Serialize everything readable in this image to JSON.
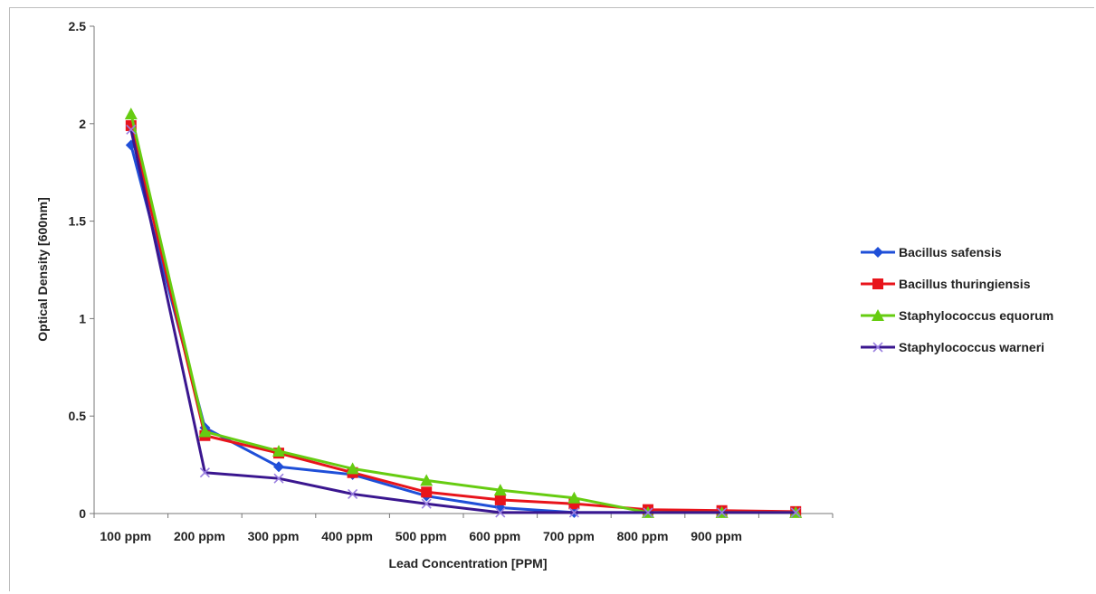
{
  "chart_data": {
    "type": "line",
    "title": "",
    "xlabel": "Lead Concentration [PPM]",
    "ylabel": "Optical Density [600nm]",
    "categories": [
      "100 ppm",
      "200 ppm",
      "300 ppm",
      "400 ppm",
      "500 ppm",
      "600 ppm",
      "700 ppm",
      "800 ppm",
      "900 ppm",
      ""
    ],
    "ylim": [
      0,
      2.5
    ],
    "yticks": [
      "0",
      "0.5",
      "1",
      "1.5",
      "2",
      "2.5"
    ],
    "grid": false,
    "legend_position": "right",
    "series": [
      {
        "name": "Bacillus safensis",
        "color": "#1f4fd8",
        "marker": "diamond",
        "values": [
          1.89,
          0.44,
          0.24,
          0.2,
          0.09,
          0.03,
          0.005,
          0.005,
          0.005,
          0.005
        ]
      },
      {
        "name": "Bacillus thuringiensis",
        "color": "#e8141b",
        "marker": "square",
        "values": [
          1.99,
          0.4,
          0.31,
          0.21,
          0.11,
          0.07,
          0.05,
          0.02,
          0.015,
          0.01
        ]
      },
      {
        "name": "Staphylococcus equorum",
        "color": "#66cc11",
        "marker": "triangle",
        "values": [
          2.05,
          0.42,
          0.32,
          0.23,
          0.17,
          0.12,
          0.08,
          0.005,
          0.005,
          0.005
        ]
      },
      {
        "name": "Staphylococcus warneri",
        "color": "#3a168f",
        "marker": "x",
        "values": [
          1.97,
          0.21,
          0.18,
          0.1,
          0.05,
          0.005,
          0.005,
          0.005,
          0.005,
          0.005
        ]
      }
    ]
  }
}
